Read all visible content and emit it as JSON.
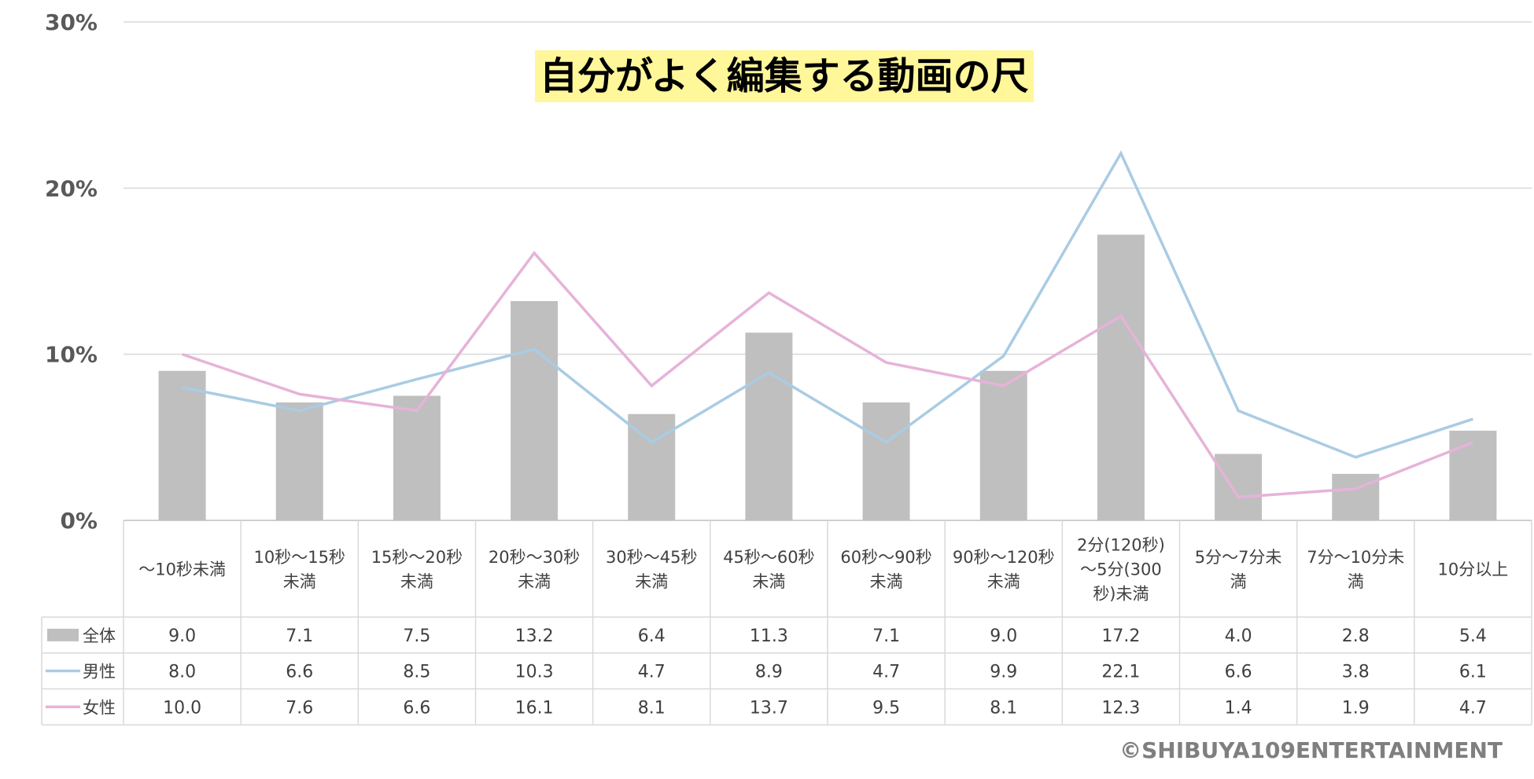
{
  "chart_data": {
    "type": "bar",
    "title": "自分がよく編集する動画の尺",
    "categories": [
      [
        "～10秒未満"
      ],
      [
        "10秒～15秒",
        "未満"
      ],
      [
        "15秒～20秒",
        "未満"
      ],
      [
        "20秒～30秒",
        "未満"
      ],
      [
        "30秒～45秒",
        "未満"
      ],
      [
        "45秒～60秒",
        "未満"
      ],
      [
        "60秒～90秒",
        "未満"
      ],
      [
        "90秒～120秒",
        "未満"
      ],
      [
        "2分(120秒)",
        "～5分(300",
        "秒)未満"
      ],
      [
        "5分～7分未",
        "満"
      ],
      [
        "7分～10分未",
        "満"
      ],
      [
        "10分以上"
      ]
    ],
    "series": [
      {
        "name": "全体",
        "type": "bar",
        "color": "#bfbfbf",
        "values": [
          9.0,
          7.1,
          7.5,
          13.2,
          6.4,
          11.3,
          7.1,
          9.0,
          17.2,
          4.0,
          2.8,
          5.4
        ],
        "labels": [
          "9.0",
          "7.1",
          "7.5",
          "13.2",
          "6.4",
          "11.3",
          "7.1",
          "9.0",
          "17.2",
          "4.0",
          "2.8",
          "5.4"
        ]
      },
      {
        "name": "男性",
        "type": "line",
        "color": "#a9cce3",
        "values": [
          8.0,
          6.6,
          8.5,
          10.3,
          4.7,
          8.9,
          4.7,
          9.9,
          22.1,
          6.6,
          3.8,
          6.1
        ],
        "labels": [
          "8.0",
          "6.6",
          "8.5",
          "10.3",
          "4.7",
          "8.9",
          "4.7",
          "9.9",
          "22.1",
          "6.6",
          "3.8",
          "6.1"
        ]
      },
      {
        "name": "女性",
        "type": "line",
        "color": "#e6b3d9",
        "values": [
          10.0,
          7.6,
          6.6,
          16.1,
          8.1,
          13.7,
          9.5,
          8.1,
          12.3,
          1.4,
          1.9,
          4.7
        ],
        "labels": [
          "10.0",
          "7.6",
          "6.6",
          "16.1",
          "8.1",
          "13.7",
          "9.5",
          "8.1",
          "12.3",
          "1.4",
          "1.9",
          "4.7"
        ]
      }
    ],
    "yticks": [
      "0%",
      "10%",
      "20%",
      "30%"
    ],
    "ylim": [
      0,
      30
    ],
    "grid": true,
    "legend": "data-table"
  },
  "credit": "©SHIBUYA109ENTERTAINMENT"
}
